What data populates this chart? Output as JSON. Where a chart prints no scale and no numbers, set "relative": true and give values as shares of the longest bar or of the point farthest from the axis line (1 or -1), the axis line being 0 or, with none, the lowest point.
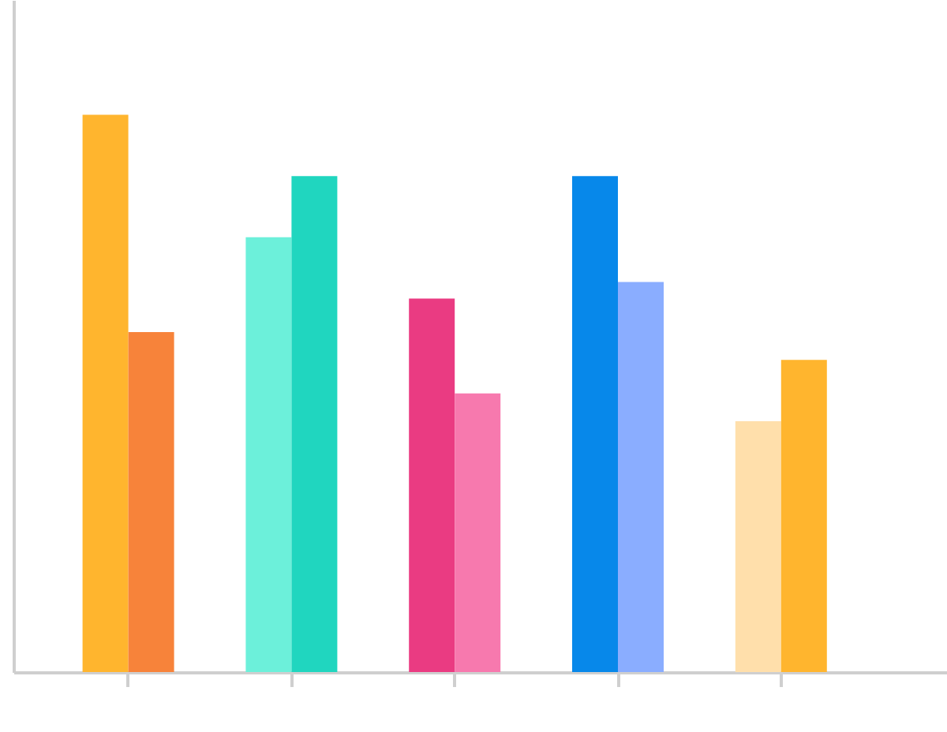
{
  "chart_data": {
    "type": "bar",
    "relative": true,
    "categories": [
      null,
      null,
      null,
      null,
      null
    ],
    "series": [
      {
        "values": [
          1,
          0.78,
          0.67,
          0.89,
          0.45
        ],
        "colors": [
          "#ffb52e",
          "#6cf0da",
          "#ea3b82",
          "#0788ea",
          "#ffdfab"
        ]
      },
      {
        "values": [
          0.61,
          0.89,
          0.5,
          0.7,
          0.56
        ],
        "colors": [
          "#f7833a",
          "#20d6bf",
          "#f779ae",
          "#8aadff",
          "#ffb52e"
        ]
      }
    ]
  }
}
